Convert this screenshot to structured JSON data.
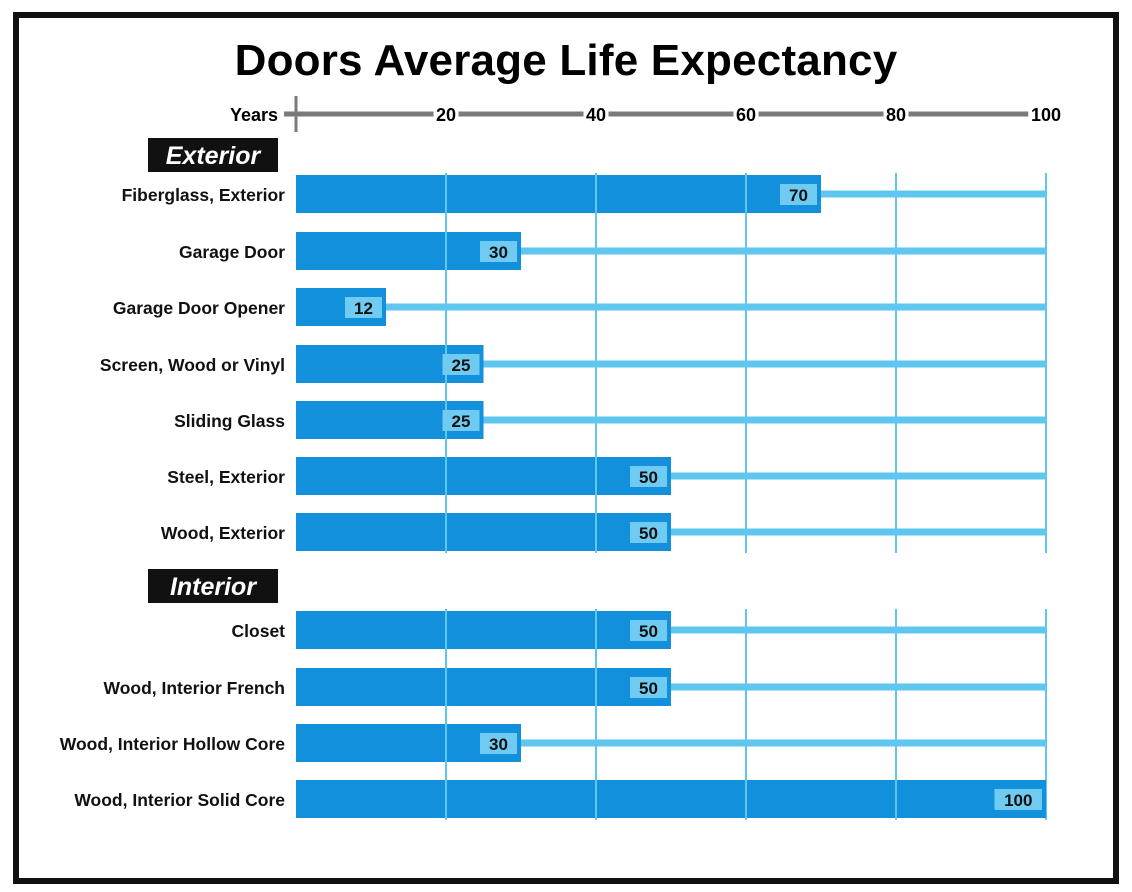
{
  "chart_data": {
    "type": "bar",
    "orientation": "horizontal",
    "title": "Doors Average Life Expectancy",
    "xlabel": "Years",
    "xlim": [
      0,
      100
    ],
    "xticks": [
      20,
      40,
      60,
      80,
      100
    ],
    "axis_position": "top",
    "grid": true,
    "groups": [
      {
        "name": "Exterior",
        "categories": [
          "Fiberglass, Exterior",
          "Garage Door",
          "Garage Door Opener",
          "Screen, Wood or Vinyl",
          "Sliding Glass",
          "Steel, Exterior",
          "Wood, Exterior"
        ],
        "values": [
          70,
          30,
          12,
          25,
          25,
          50,
          50
        ]
      },
      {
        "name": "Interior",
        "categories": [
          "Closet",
          "Wood, Interior French",
          "Wood, Interior Hollow Core",
          "Wood, Interior Solid Core"
        ],
        "values": [
          50,
          50,
          30,
          100
        ]
      }
    ],
    "colors": {
      "bar": "#1390DC",
      "track": "#5EC6EF",
      "label_box": "#6FCBF2",
      "axis": "#7A7A7A",
      "group_label_bg": "#111111"
    }
  }
}
